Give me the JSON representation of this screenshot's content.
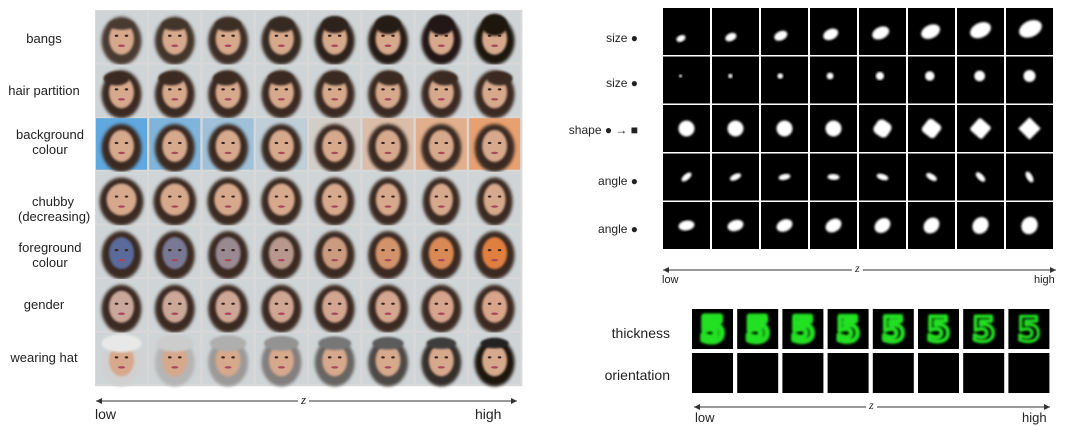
{
  "faces": {
    "rows": [
      {
        "label": "bangs"
      },
      {
        "label": "hair partition"
      },
      {
        "label": "background colour"
      },
      {
        "label": "chubby (decreasing)"
      },
      {
        "label": "foreground colour"
      },
      {
        "label": "gender"
      },
      {
        "label": "wearing hat"
      }
    ],
    "columns": 8,
    "axis": {
      "low": "low",
      "var": "z",
      "high": "high"
    }
  },
  "shapes": {
    "rows": [
      {
        "label": "size ●"
      },
      {
        "label": "size ●"
      },
      {
        "label": "shape ● → ■"
      },
      {
        "label": "angle ●"
      },
      {
        "label": "angle ●"
      }
    ],
    "columns": 8,
    "axis": {
      "low": "low",
      "var": "z",
      "high": "high"
    }
  },
  "digits": {
    "rows": [
      {
        "label": "thickness",
        "color": "#22e022"
      },
      {
        "label": "orientation",
        "color": "#e02020"
      }
    ],
    "columns": 8,
    "digit_glyph": "5",
    "axis": {
      "low": "low",
      "var": "z",
      "high": "high"
    }
  }
}
